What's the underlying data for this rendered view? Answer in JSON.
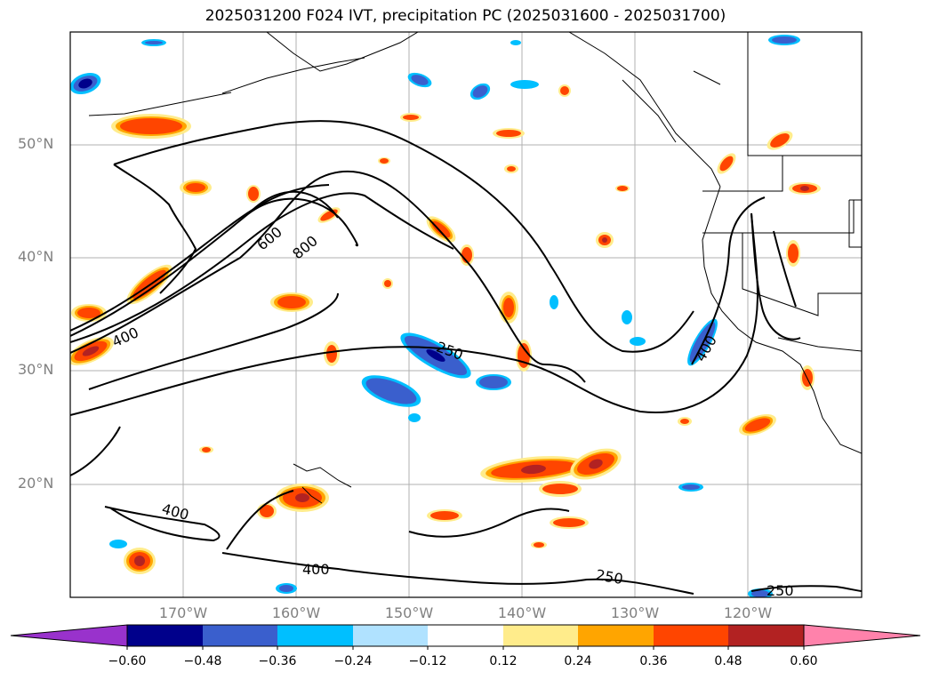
{
  "title": "2025031200 F024 IVT, precipitation PC (2025031600 - 2025031700)",
  "lat_labels": [
    "50°N",
    "40°N",
    "30°N",
    "20°N"
  ],
  "lon_labels": [
    "170°W",
    "160°W",
    "150°W",
    "140°W",
    "130°W",
    "120°W"
  ],
  "contour_labels": [
    "600",
    "800",
    "400",
    "250",
    "400",
    "400",
    "400",
    "250",
    "250"
  ],
  "colorbar": {
    "ticks": [
      "−0.60",
      "−0.48",
      "−0.36",
      "−0.24",
      "−0.12",
      "0.12",
      "0.24",
      "0.36",
      "0.48",
      "0.60"
    ],
    "colors": [
      "#9932cc",
      "#00008b",
      "#3a5fcd",
      "#00bfff",
      "#b0e2ff",
      "#ffffff",
      "#ffec8b",
      "#ffa500",
      "#ff4500",
      "#b22222",
      "#ff82ab",
      "#ff82ab"
    ]
  },
  "palette": {
    "positive_outer": "#ffec8b",
    "positive_mid": "#ffa500",
    "positive_inner": "#ff4500",
    "positive_core": "#b22222",
    "negative_outer": "#00bfff",
    "negative_mid": "#3a5fcd",
    "negative_core": "#00008b",
    "grid": "#b0b0b0",
    "contour": "#000000"
  }
}
